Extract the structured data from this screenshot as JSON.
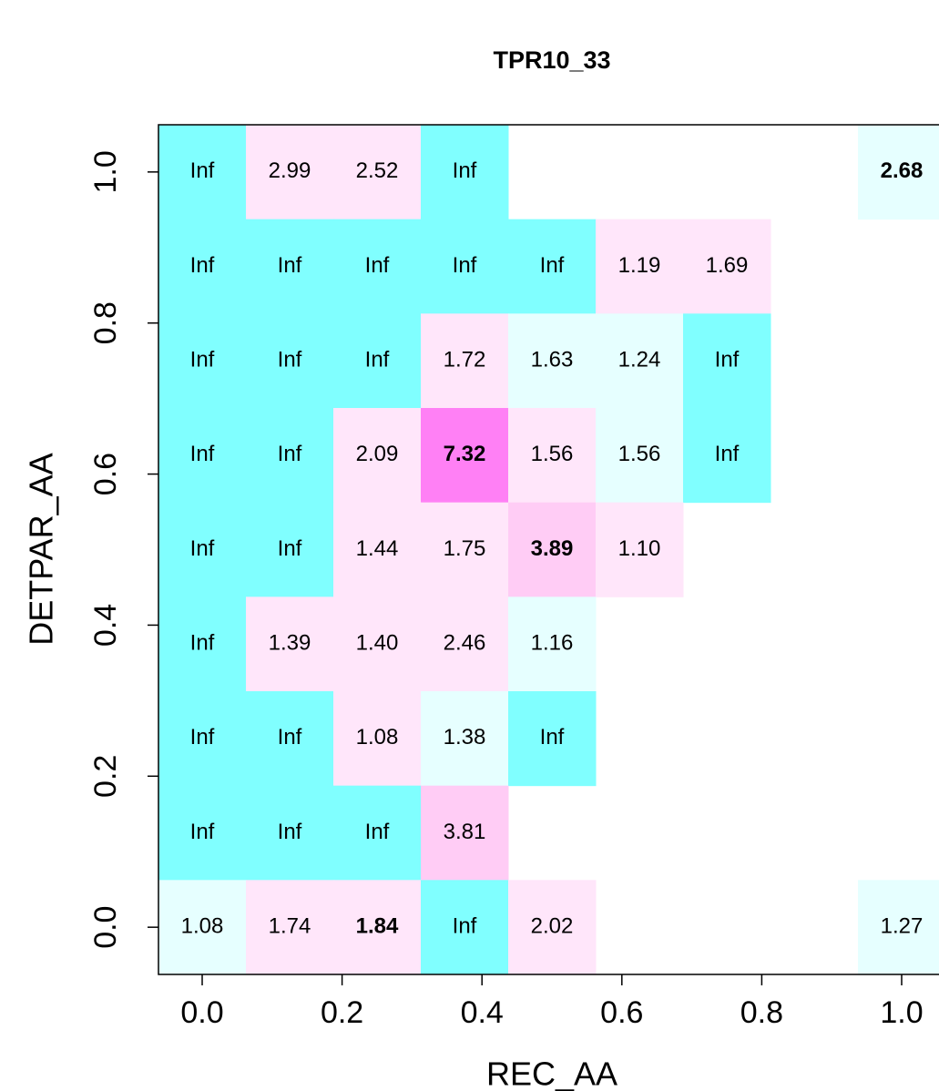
{
  "chart_data": {
    "type": "heatmap",
    "title": "TPR10_33",
    "xlabel": "REC_AA",
    "ylabel": "DETPAR_AA",
    "x": [
      0,
      0.125,
      0.25,
      0.375,
      1.0,
      0,
      0.125,
      0.25,
      0.375,
      0.5,
      0.625,
      0.75,
      0,
      0.125,
      0.25,
      0.375,
      0.5,
      0.625,
      0.75,
      0,
      0.125,
      0.25,
      0.375,
      0.5,
      0.625,
      0.75,
      0,
      0.125,
      0.25,
      0.375,
      0.5,
      0.625,
      0,
      0.125,
      0.25,
      0.375,
      0.5,
      0,
      0.125,
      0.25,
      0.375,
      0.5,
      0,
      0.125,
      0.25,
      0.375,
      0,
      0.125,
      0.25,
      0.375,
      0.5,
      1.0
    ],
    "y": [
      1,
      1,
      1,
      1,
      1,
      0.875,
      0.875,
      0.875,
      0.875,
      0.875,
      0.875,
      0.875,
      0.75,
      0.75,
      0.75,
      0.75,
      0.75,
      0.75,
      0.75,
      0.625,
      0.625,
      0.625,
      0.625,
      0.625,
      0.625,
      0.625,
      0.5,
      0.5,
      0.5,
      0.5,
      0.5,
      0.5,
      0.375,
      0.375,
      0.375,
      0.375,
      0.375,
      0.25,
      0.25,
      0.25,
      0.25,
      0.25,
      0.125,
      0.125,
      0.125,
      0.125,
      0,
      0,
      0,
      0,
      0,
      0
    ],
    "values": [
      null,
      2.99,
      2.52,
      null,
      2.68,
      null,
      null,
      null,
      null,
      null,
      1.19,
      1.69,
      null,
      null,
      null,
      1.72,
      1.63,
      1.24,
      null,
      null,
      null,
      2.09,
      7.32,
      1.56,
      1.56,
      null,
      null,
      null,
      1.44,
      1.75,
      3.89,
      1.1,
      null,
      1.39,
      1.4,
      2.46,
      1.16,
      null,
      null,
      1.08,
      1.38,
      null,
      null,
      null,
      null,
      3.81,
      1.08,
      1.74,
      1.84,
      null,
      2.02,
      1.27
    ],
    "value_labels": [
      "Inf",
      "2.99",
      "2.52",
      "Inf",
      "2.68",
      "Inf",
      "Inf",
      "Inf",
      "Inf",
      "Inf",
      "1.19",
      "1.69",
      "Inf",
      "Inf",
      "Inf",
      "1.72",
      "1.63",
      "1.24",
      "Inf",
      "Inf",
      "Inf",
      "2.09",
      "7.32",
      "1.56",
      "1.56",
      "Inf",
      "Inf",
      "Inf",
      "1.44",
      "1.75",
      "3.89",
      "1.10",
      "Inf",
      "1.39",
      "1.40",
      "2.46",
      "1.16",
      "Inf",
      "Inf",
      "1.08",
      "1.38",
      "Inf",
      "Inf",
      "Inf",
      "Inf",
      "3.81",
      "1.08",
      "1.74",
      "1.84",
      "Inf",
      "2.02",
      "1.27"
    ],
    "colors": [
      "#80ffff",
      "#ffe6fa",
      "#ffe6fa",
      "#80ffff",
      "#e6ffff",
      "#80ffff",
      "#80ffff",
      "#80ffff",
      "#80ffff",
      "#80ffff",
      "#ffe6fa",
      "#ffe6fa",
      "#80ffff",
      "#80ffff",
      "#80ffff",
      "#ffe6fa",
      "#e6ffff",
      "#e6ffff",
      "#80ffff",
      "#80ffff",
      "#80ffff",
      "#ffe6fa",
      "#ff80f5",
      "#ffe6fa",
      "#e6ffff",
      "#80ffff",
      "#80ffff",
      "#80ffff",
      "#ffe6fa",
      "#ffe6fa",
      "#ffccf5",
      "#ffe6fa",
      "#80ffff",
      "#ffe6fa",
      "#ffe6fa",
      "#ffe6fa",
      "#e6ffff",
      "#80ffff",
      "#80ffff",
      "#ffe6fa",
      "#e6ffff",
      "#80ffff",
      "#80ffff",
      "#80ffff",
      "#80ffff",
      "#ffccf5",
      "#e6ffff",
      "#ffe6fa",
      "#ffe6fa",
      "#80ffff",
      "#ffe6fa",
      "#e6ffff"
    ],
    "bold": [
      false,
      false,
      false,
      false,
      true,
      false,
      false,
      false,
      false,
      false,
      false,
      false,
      false,
      false,
      false,
      false,
      false,
      false,
      false,
      false,
      false,
      false,
      true,
      false,
      false,
      false,
      false,
      false,
      false,
      false,
      true,
      false,
      false,
      false,
      false,
      false,
      false,
      false,
      false,
      false,
      false,
      false,
      false,
      false,
      false,
      false,
      false,
      false,
      true,
      false,
      false,
      false
    ],
    "cell_width": 0.125,
    "cell_height": 0.125,
    "xlim": [
      -0.0625,
      1.0625
    ],
    "ylim": [
      -0.0625,
      1.0625
    ],
    "xticks": [
      {
        "value": 0,
        "label": "0.0"
      },
      {
        "value": 0.2,
        "label": "0.2"
      },
      {
        "value": 0.4,
        "label": "0.4"
      },
      {
        "value": 0.6,
        "label": "0.6"
      },
      {
        "value": 0.8,
        "label": "0.8"
      },
      {
        "value": 1,
        "label": "1.0"
      }
    ],
    "yticks": [
      {
        "value": 0,
        "label": "0.0"
      },
      {
        "value": 0.2,
        "label": "0.2"
      },
      {
        "value": 0.4,
        "label": "0.4"
      },
      {
        "value": 0.6,
        "label": "0.6"
      },
      {
        "value": 0.8,
        "label": "0.8"
      },
      {
        "value": 1,
        "label": "1.0"
      }
    ]
  }
}
